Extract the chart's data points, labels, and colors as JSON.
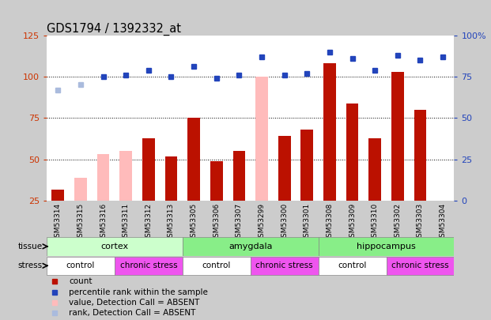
{
  "title": "GDS1794 / 1392332_at",
  "samples": [
    "GSM53314",
    "GSM53315",
    "GSM53316",
    "GSM53311",
    "GSM53312",
    "GSM53313",
    "GSM53305",
    "GSM53306",
    "GSM53307",
    "GSM53299",
    "GSM53300",
    "GSM53301",
    "GSM53308",
    "GSM53309",
    "GSM53310",
    "GSM53302",
    "GSM53303",
    "GSM53304"
  ],
  "count_values": [
    32,
    null,
    null,
    null,
    63,
    52,
    75,
    49,
    55,
    null,
    64,
    68,
    108,
    84,
    63,
    103,
    80,
    null
  ],
  "count_absent": [
    null,
    39,
    53,
    55,
    null,
    null,
    null,
    null,
    null,
    100,
    null,
    null,
    null,
    null,
    null,
    null,
    null,
    null
  ],
  "rank_values": [
    null,
    null,
    null,
    null,
    null,
    null,
    null,
    null,
    null,
    87,
    null,
    null,
    90,
    null,
    null,
    88,
    null,
    null
  ],
  "rank_absent": [
    67,
    70,
    null,
    null,
    null,
    null,
    null,
    null,
    null,
    null,
    null,
    null,
    null,
    null,
    null,
    null,
    null,
    null
  ],
  "percentile_rank": [
    null,
    null,
    75,
    76,
    79,
    75,
    81,
    74,
    76,
    null,
    76,
    77,
    null,
    86,
    79,
    null,
    85,
    87
  ],
  "ylim_left": [
    25,
    125
  ],
  "ylim_right": [
    0,
    100
  ],
  "bar_color_count": "#bb1100",
  "bar_color_absent": "#ffbbbb",
  "dot_color_rank": "#2244bb",
  "dot_color_rank_absent": "#aabbdd",
  "background_color": "#cccccc",
  "plot_bg": "#ffffff",
  "yticks_left": [
    25,
    50,
    75,
    100,
    125
  ],
  "yticks_right": [
    0,
    25,
    50,
    75,
    100
  ],
  "ytick_labels_right": [
    "0",
    "25",
    "50",
    "75",
    "100%"
  ],
  "tissue_color_cortex": "#ccffcc",
  "tissue_color_amygdala": "#88ff88",
  "tissue_color_hippo": "#88ff88",
  "stress_color_control": "#ffffff",
  "stress_color_chronic": "#ee66ee",
  "legend_items": [
    {
      "color": "#bb1100",
      "label": "count"
    },
    {
      "color": "#2244bb",
      "label": "percentile rank within the sample"
    },
    {
      "color": "#ffbbbb",
      "label": "value, Detection Call = ABSENT"
    },
    {
      "color": "#aabbdd",
      "label": "rank, Detection Call = ABSENT"
    }
  ]
}
